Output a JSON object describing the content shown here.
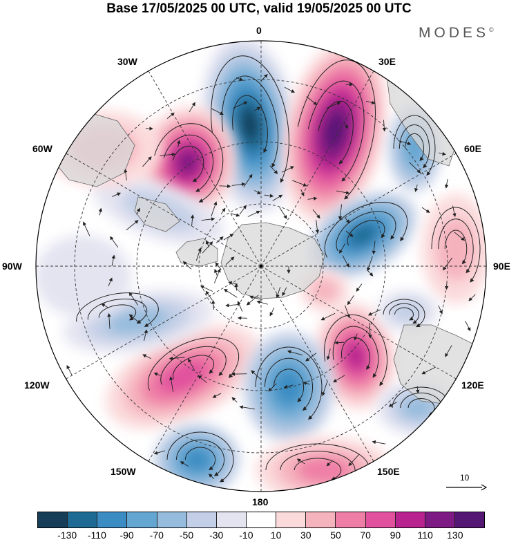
{
  "title": "Base 17/05/2025 00 UTC, valid 19/05/2025 00 UTC",
  "brand": {
    "name": "MODES",
    "mark": "©"
  },
  "longitude_labels": {
    "lon0": "0",
    "lon30e": "30E",
    "lon60e": "60E",
    "lon90e": "90E",
    "lon120e": "120E",
    "lon150e": "150E",
    "lon180": "180",
    "lon150w": "150W",
    "lon120w": "120W",
    "lon90w": "90W",
    "lon60w": "60W",
    "lon30w": "30W"
  },
  "reference_vector": {
    "label": "10",
    "icon": "arrow-right-icon"
  },
  "colorbar": {
    "ticks": [
      "-130",
      "-110",
      "-90",
      "-70",
      "-50",
      "-30",
      "-10",
      "10",
      "30",
      "50",
      "70",
      "90",
      "110",
      "130"
    ],
    "colors": [
      "#173e59",
      "#1d6a94",
      "#3b8cc2",
      "#63a6d2",
      "#95bcdd",
      "#c3cfe6",
      "#e4e4f1",
      "#ffffff",
      "#fbdadb",
      "#f5b3be",
      "#ef7ea6",
      "#e1519e",
      "#b8238f",
      "#7e1a83",
      "#541774"
    ]
  },
  "colors": {
    "land": "#d8d8d8",
    "coast": "#666666",
    "grid": "#333333",
    "streamline": "#222222"
  }
}
